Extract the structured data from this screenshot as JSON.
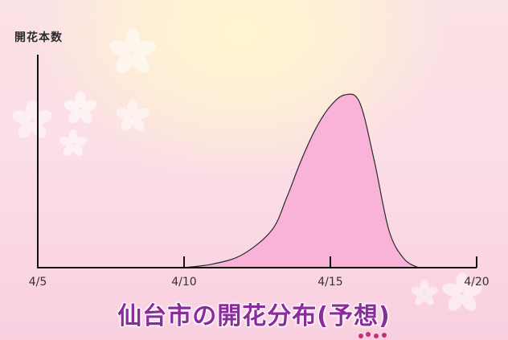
{
  "chart_data": {
    "type": "area",
    "title": "仙台市の開花分布(予想)",
    "ylabel": "開花本数",
    "xlabel": "",
    "x_ticks": [
      "4/5",
      "4/10",
      "4/15",
      "4/20"
    ],
    "x_range": [
      "4/5",
      "4/20"
    ],
    "series": [
      {
        "x": [
          "4/10",
          "4/11",
          "4/12",
          "4/13",
          "4/13.5",
          "4/14",
          "4/14.5",
          "4/15",
          "4/15.5",
          "4/16",
          "4/16.5",
          "4/17",
          "4/17.5",
          "4/18"
        ],
        "values": [
          0,
          2,
          7,
          20,
          37,
          57,
          74,
          86,
          92,
          88,
          57,
          20,
          5,
          0
        ]
      }
    ],
    "colors": {
      "fill": "#f9b3d8",
      "stroke": "#2a2a2a"
    },
    "grid": false,
    "legend": "none"
  }
}
